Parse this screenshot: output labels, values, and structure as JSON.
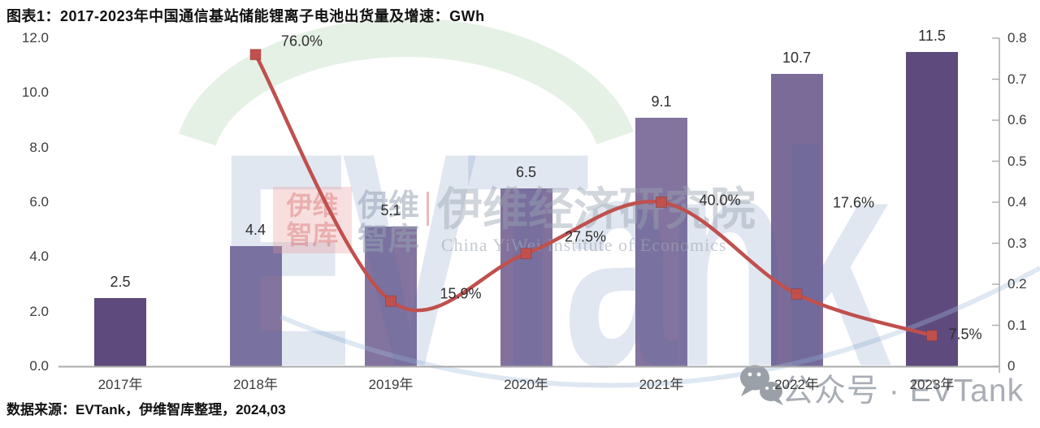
{
  "header": {
    "title": "图表1：2017-2023年中国通信基站储能锂离子电池出货量及增速：GWh"
  },
  "footer": {
    "source": "数据来源：EVTank，伊维智库整理，2024,03"
  },
  "badge": {
    "label": "公众号 · EVTank",
    "icon": "wechat-icon"
  },
  "watermark": {
    "logo_block_line1": "伊维",
    "logo_block_line2": "智库",
    "brand_cn_line1": "伊维",
    "brand_cn_line2": "智库",
    "brand_cn_large": "伊维经济研究院",
    "brand_en": "China YiWei Institute of Economics",
    "brand_big": "EVTank"
  },
  "chart_data": {
    "type": "bar+line",
    "title": "2017-2023年中国通信基站储能锂离子电池出货量及增速",
    "unit": "GWh",
    "categories": [
      "2017年",
      "2018年",
      "2019年",
      "2020年",
      "2021年",
      "2022年",
      "2023年"
    ],
    "series": [
      {
        "name": "出货量(GWh)",
        "type": "bar",
        "axis": "left",
        "values": [
          2.5,
          4.4,
          5.1,
          6.5,
          9.1,
          10.7,
          11.5
        ],
        "labels": [
          "2.5",
          "4.4",
          "5.1",
          "6.5",
          "9.1",
          "10.7",
          "11.5"
        ],
        "bar_colors": [
          "#5e4a7d",
          "#83739f",
          "#83739f",
          "#82719d",
          "#83739f",
          "#7b6b99",
          "#5e4a7d"
        ]
      },
      {
        "name": "增速(%)",
        "type": "line",
        "axis": "right",
        "values": [
          null,
          0.76,
          0.159,
          0.275,
          0.4,
          0.176,
          0.075
        ],
        "labels": [
          null,
          "76.0%",
          "15.9%",
          "27.5%",
          "40.0%",
          "17.6%",
          "7.5%"
        ],
        "color": "#c0504d",
        "marker": "square"
      }
    ],
    "left_axis": {
      "min": 0,
      "max": 12,
      "tick_labels": [
        "0.0",
        "2.0",
        "4.0",
        "6.0",
        "8.0",
        "10.0",
        "12.0"
      ]
    },
    "right_axis": {
      "min": 0,
      "max": 0.8,
      "tick_labels": [
        "0",
        "0.1",
        "0.2",
        "0.3",
        "0.4",
        "0.5",
        "0.6",
        "0.7",
        "0.8"
      ]
    },
    "grid": false,
    "legend": "none",
    "axis_color": "#ababab"
  }
}
